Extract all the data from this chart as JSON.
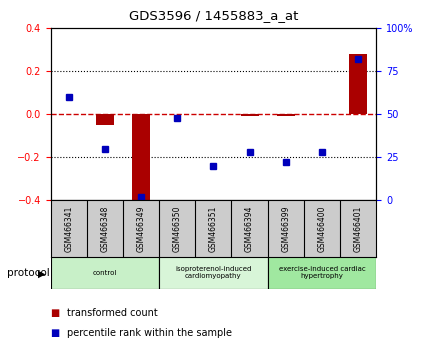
{
  "title": "GDS3596 / 1455883_a_at",
  "samples": [
    "GSM466341",
    "GSM466348",
    "GSM466349",
    "GSM466350",
    "GSM466351",
    "GSM466394",
    "GSM466399",
    "GSM466400",
    "GSM466401"
  ],
  "transformed_count": [
    0.0,
    -0.05,
    -0.42,
    0.0,
    0.0,
    -0.01,
    -0.01,
    0.0,
    0.28
  ],
  "percentile_rank": [
    60,
    30,
    2,
    48,
    20,
    28,
    22,
    28,
    82
  ],
  "ylim_left": [
    -0.4,
    0.4
  ],
  "ylim_right": [
    0,
    100
  ],
  "yticks_left": [
    -0.4,
    -0.2,
    0.0,
    0.2,
    0.4
  ],
  "yticks_right": [
    0,
    25,
    50,
    75,
    100
  ],
  "ytick_labels_right": [
    "0",
    "25",
    "50",
    "75",
    "100%"
  ],
  "protocols": [
    {
      "label": "control",
      "start": 0,
      "end": 3,
      "color": "#c8f0c8"
    },
    {
      "label": "isoproterenol-induced\ncardiomyopathy",
      "start": 3,
      "end": 6,
      "color": "#d8f5d8"
    },
    {
      "label": "exercise-induced cardiac\nhypertrophy",
      "start": 6,
      "end": 9,
      "color": "#a0e8a0"
    }
  ],
  "bar_color_red": "#aa0000",
  "bar_color_blue": "#0000bb",
  "zero_line_color": "#cc0000",
  "grid_color": "#000000",
  "bg_color": "#ffffff",
  "sample_bg_color": "#cccccc",
  "legend_red_label": "transformed count",
  "legend_blue_label": "percentile rank within the sample",
  "protocol_label": "protocol"
}
